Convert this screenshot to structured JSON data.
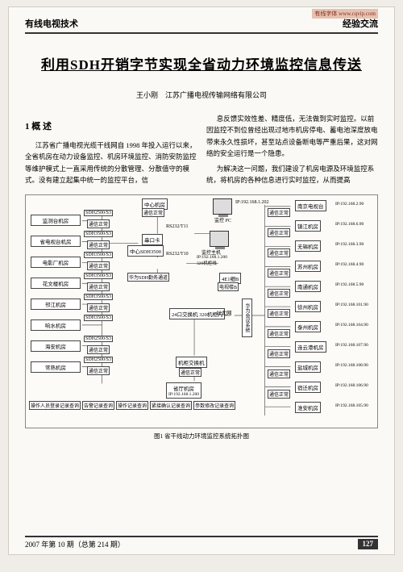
{
  "header": {
    "url": "有线字体 www.cqvip.com",
    "left": "有线电视技术",
    "right": "经验交流"
  },
  "title": "利用SDH开销字节实现全省动力环境监控信息传送",
  "author": {
    "name": "王小刚",
    "org": "江苏广播电视传输网络有限公司"
  },
  "section1": {
    "heading": "1 概 述"
  },
  "body": {
    "p1": "江苏省广播电视光缆干线网自 1998 年投入运行以来，全省机房在动力设备监控、机房环境监控、消防安防监控等维护模式上一直采用传统的分散管理、分散值守的模式。没有建立起集中统一的监控平台，信",
    "p2": "息反馈实效性差、精度低，无法做到实时监控。以前因监控不到位曾经出现过地市机房停电、蓄电池深度放电带来永久性损坏，甚至站点设备断电等严重后果，这对网络的安全运行是一个隐患。",
    "p3": "为解决这一问题，我们建设了机房电源及环境监控系统，将机房的各种信息进行实时监控，从而提高"
  },
  "diagram": {
    "caption": "图1 省干线动力环境监控系统拓扑图",
    "top_nodes": {
      "center_room": "中心机房",
      "comm_ok": "通信正常",
      "monitor_pc": "监控\nPC",
      "monitor_pc_ip": "IP:192.168.1.202",
      "rs232_1": "RS232/T11",
      "port_card": "串口卡",
      "hw_sdh": "中心SDH3500",
      "rs232_2": "RS232/T10",
      "monitor_host": "监控主机",
      "monitor_host_ip": "IP:192.168.1.200\n320机柜线",
      "hw_sdh_business": "华为SDH勤务通道",
      "cellb": "4E1细B",
      "tv_univ": "电视楼B",
      "switch24": "24口交换机\n320机柜内",
      "ethernet": "以太网",
      "huawei_equip": "华为会议系统",
      "optical_switch": "机柜交换机",
      "comm_ok2": "通信正常",
      "prov_room": "省厅机房",
      "prov_room_ip": "IP:192.168.1.200"
    },
    "left_nodes": [
      {
        "label": "监测台机房",
        "sdh": "SDH2500/S3",
        "comm": "通信正常"
      },
      {
        "label": "省电视台机房",
        "sdh": "SDH3500/S3",
        "comm": "通信正常"
      },
      {
        "label": "电影厂机房",
        "sdh": "SDH3500/S3",
        "comm": "通信正常"
      },
      {
        "label": "花文楼机房",
        "sdh": "SDH3500/S3",
        "comm": "通信正常"
      },
      {
        "label": "邗江机房",
        "sdh": "SDH3500/S3",
        "comm": "通信正常"
      },
      {
        "label": "响水机房",
        "sdh": "SDH3500/S3",
        "comm": ""
      },
      {
        "label": "海安机房",
        "sdh": "SDH2500/S3",
        "comm": "通信正常"
      },
      {
        "label": "常熟机房",
        "sdh": "SDH2500/S3",
        "comm": "通信正常"
      }
    ],
    "right_nodes": [
      {
        "label": "南京电视台",
        "ip": "IP:192.168.2.90",
        "comm": "通信正常"
      },
      {
        "label": "镇江机房",
        "ip": "IP:192.168.6.90",
        "comm": "通信正常"
      },
      {
        "label": "无锡机房",
        "ip": "IP:192.168.3.90",
        "comm": "通信正常"
      },
      {
        "label": "苏州机房",
        "ip": "IP:192.168.4.90",
        "comm": "通信正常"
      },
      {
        "label": "南通机房",
        "ip": "IP:192.168.5.90",
        "comm": "通信正常"
      },
      {
        "label": "徐州机房",
        "ip": "IP:192.168.101.90",
        "comm": "通信正常"
      },
      {
        "label": "泰州机房",
        "ip": "IP:192.168.104.90",
        "comm": "通信正常"
      },
      {
        "label": "连云港机房",
        "ip": "IP:192.168.107.90",
        "comm": "通信正常"
      },
      {
        "label": "盐城机房",
        "ip": "IP:192.168.108.90",
        "comm": "通信正常"
      },
      {
        "label": "宿迁机房",
        "ip": "IP:192.168.106.90",
        "comm": "通信正常"
      },
      {
        "label": "淮安机房",
        "ip": "IP:192.168.105.90",
        "comm": ""
      }
    ],
    "buttons": [
      "操作人员登录记录查询",
      "告警记录查询",
      "操作记录查询",
      "紧接确认记录查询",
      "参数修改记录查询"
    ]
  },
  "footer": {
    "issue": "2007 年第 10 期（总第 214 期）",
    "page": "127"
  },
  "colors": {
    "text": "#222",
    "border": "#333",
    "box_bg": "#ffffff",
    "page_bg": "#faf9f5",
    "body_bg": "#f0ede8"
  }
}
